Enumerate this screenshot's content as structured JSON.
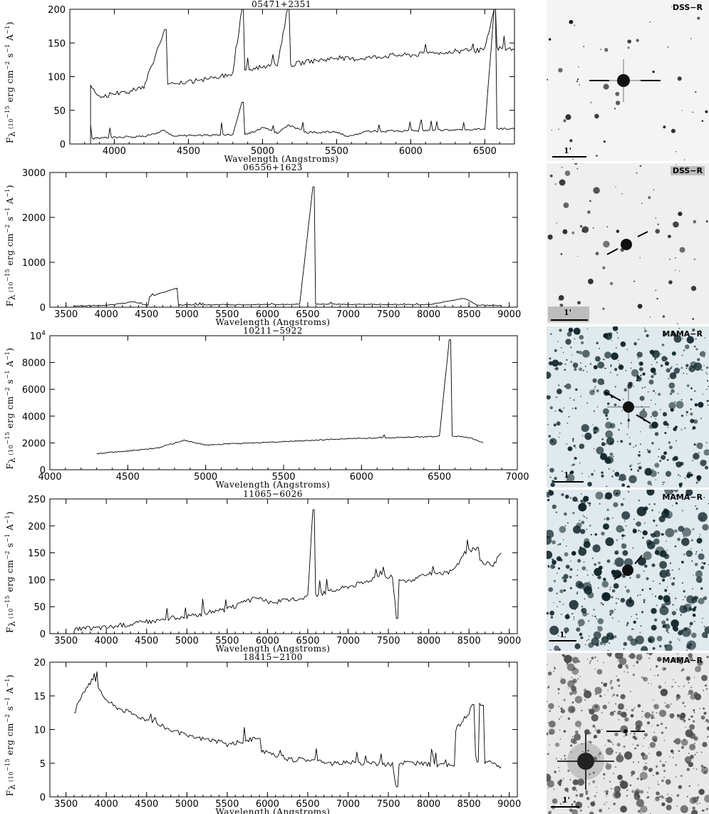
{
  "chart_data": [
    {
      "type": "line",
      "title": "05471+2351",
      "xlabel": "Wavelength (Angstroms)",
      "xlim": [
        3700,
        6700
      ],
      "ylim": [
        0,
        200
      ],
      "xticks": [
        "4000",
        "4500",
        "5000",
        "5500",
        "6000",
        "6500"
      ],
      "yticks": [
        "0",
        "50",
        "100",
        "150",
        "200"
      ],
      "series": [
        {
          "x": [
            3840,
            3900,
            4000,
            4100,
            4200,
            4340,
            4400,
            4500,
            4600,
            4700,
            4800,
            4861,
            4900,
            5000,
            5100,
            5169,
            5200,
            5300,
            5400,
            5500,
            5600,
            5700,
            5800,
            5900,
            6000,
            6100,
            6200,
            6300,
            6400,
            6500,
            6563,
            6600,
            6700
          ],
          "y": [
            88,
            70,
            75,
            78,
            85,
            170,
            88,
            92,
            95,
            100,
            105,
            200,
            110,
            115,
            118,
            200,
            118,
            122,
            125,
            128,
            126,
            128,
            130,
            132,
            132,
            134,
            136,
            138,
            138,
            140,
            200,
            142,
            140
          ]
        },
        {
          "x": [
            3840,
            3900,
            4000,
            4200,
            4340,
            4400,
            4600,
            4800,
            4861,
            4900,
            5016,
            5100,
            5169,
            5300,
            5500,
            5577,
            5700,
            5900,
            6100,
            6300,
            6500,
            6563,
            6600,
            6700
          ],
          "y": [
            8,
            9,
            10,
            11,
            20,
            12,
            13,
            14,
            62,
            15,
            25,
            16,
            28,
            17,
            18,
            10,
            19,
            19,
            20,
            21,
            22,
            200,
            23,
            22
          ]
        }
      ]
    },
    {
      "type": "line",
      "title": "06556+1623",
      "xlabel": "Wavelength (Angstroms)",
      "xlim": [
        3300,
        9100
      ],
      "ylim": [
        0,
        3000
      ],
      "xticks": [
        "3500",
        "4000",
        "4500",
        "5000",
        "5500",
        "6000",
        "6500",
        "7000",
        "7500",
        "8000",
        "8500",
        "9000"
      ],
      "yticks": [
        "0",
        "1000",
        "2000",
        "3000"
      ],
      "series": [
        {
          "x": [
            3600,
            4000,
            4340,
            4500,
            4861,
            5000,
            5500,
            6000,
            6400,
            6563,
            6700,
            7000,
            7500,
            8000,
            8446,
            8600,
            8900
          ],
          "y": [
            30,
            40,
            120,
            45,
            420,
            50,
            55,
            60,
            70,
            2680,
            70,
            65,
            60,
            55,
            200,
            50,
            40
          ]
        }
      ]
    },
    {
      "type": "line",
      "title": "10211−5922",
      "xlabel": "Wavelength (Angstroms)",
      "xlim": [
        4000,
        7000
      ],
      "ylim": [
        0,
        10000
      ],
      "xticks": [
        "4000",
        "4500",
        "5000",
        "5500",
        "6000",
        "6500",
        "7000"
      ],
      "yticks": [
        "0",
        "2000",
        "4000",
        "6000",
        "8000",
        "10⁴"
      ],
      "series": [
        {
          "x": [
            4300,
            4500,
            4700,
            4861,
            5000,
            5200,
            5500,
            5800,
            6000,
            6200,
            6400,
            6500,
            6563,
            6600,
            6700,
            6780
          ],
          "y": [
            1200,
            1400,
            1650,
            2200,
            1850,
            1950,
            2100,
            2250,
            2350,
            2400,
            2450,
            2500,
            9700,
            2500,
            2400,
            2000
          ]
        }
      ]
    },
    {
      "type": "line",
      "title": "11065−6026",
      "xlabel": "Wavelength (Angstroms)",
      "xlim": [
        3300,
        9100
      ],
      "ylim": [
        0,
        250
      ],
      "xticks": [
        "3500",
        "4000",
        "4500",
        "5000",
        "5500",
        "6000",
        "6500",
        "7000",
        "7500",
        "8000",
        "8500",
        "9000"
      ],
      "yticks": [
        "0",
        "50",
        "100",
        "150",
        "200",
        "250"
      ],
      "series": [
        {
          "x": [
            3600,
            4000,
            4500,
            4861,
            5000,
            5500,
            5890,
            6000,
            6300,
            6500,
            6563,
            6700,
            7000,
            7200,
            7400,
            7550,
            7600,
            7700,
            8000,
            8300,
            8446,
            8600,
            8800,
            8900
          ],
          "y": [
            8,
            12,
            22,
            30,
            32,
            45,
            68,
            58,
            62,
            70,
            230,
            75,
            88,
            95,
            110,
            105,
            28,
            95,
            110,
            115,
            150,
            160,
            125,
            150
          ]
        }
      ]
    },
    {
      "type": "line",
      "title": "18415−2100",
      "xlabel": "Wavelength (Angstroms)",
      "xlim": [
        3300,
        9100
      ],
      "ylim": [
        0,
        20
      ],
      "xticks": [
        "3500",
        "4000",
        "4500",
        "5000",
        "5500",
        "6000",
        "6500",
        "7000",
        "7500",
        "8000",
        "8500",
        "9000"
      ],
      "yticks": [
        "0",
        "5",
        "10",
        "15",
        "20"
      ],
      "series": [
        {
          "x": [
            3600,
            3700,
            3800,
            3850,
            3900,
            4000,
            4100,
            4300,
            4500,
            4800,
            5000,
            5300,
            5500,
            5890,
            6000,
            6300,
            6500,
            6800,
            7000,
            7200,
            7550,
            7600,
            7700,
            8000,
            8300,
            8498,
            8542,
            8600,
            8662,
            8800,
            8900
          ],
          "y": [
            12.5,
            15,
            17,
            18,
            16,
            14.5,
            13.5,
            12.5,
            11.5,
            10,
            9,
            8.5,
            7.8,
            8.7,
            6.5,
            5.5,
            5.6,
            5,
            5.2,
            5,
            4.8,
            1.5,
            5.2,
            4.8,
            4.6,
            12.5,
            13.7,
            5.2,
            13.6,
            5,
            4.5
          ]
        }
      ]
    }
  ],
  "ylabel_main": "F",
  "ylabel_sub": "λ",
  "ylabel_units": "(10",
  "ylabel_exp": "−15",
  "ylabel_rest": "erg cm",
  "ylabel_rest_exp": "−2",
  "ylabel_s": "s",
  "ylabel_s_exp": "−1",
  "ylabel_A": "A",
  "ylabel_A_exp": "−1",
  "ylabel_close": ")",
  "images": [
    {
      "label": "DSS−R",
      "scale": "1'",
      "bg": "#f4f4f4"
    },
    {
      "label": "DSS−R",
      "scale": "1'",
      "bg": "#efefef"
    },
    {
      "label": "MAMA−R",
      "scale": "1'",
      "bg": "#dfe9ee"
    },
    {
      "label": "MAMA−R",
      "scale": "1'",
      "bg": "#dfe9ee"
    },
    {
      "label": "MAMA−R",
      "scale": "1'",
      "bg": "#e8e8e8"
    }
  ]
}
